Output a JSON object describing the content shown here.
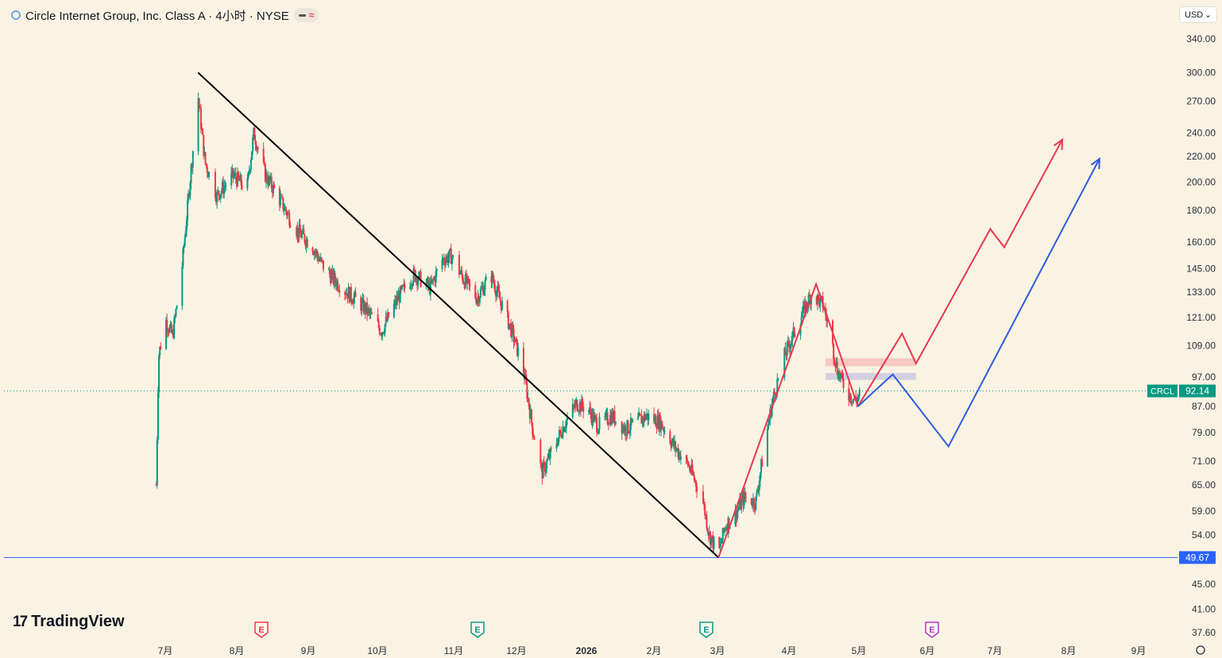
{
  "header": {
    "title": "Circle Internet Group, Inc. Class A · 4小时 · NYSE"
  },
  "currency": {
    "label": "USD"
  },
  "brand": {
    "name": "TradingView"
  },
  "chart_data": {
    "type": "candlestick",
    "symbol": "CRCL",
    "last_price": "92.14",
    "support_price": "49.67",
    "scale": "log",
    "y_ticks": [
      "340.00",
      "300.00",
      "270.00",
      "240.00",
      "220.00",
      "200.00",
      "180.00",
      "160.00",
      "145.00",
      "133.00",
      "121.00",
      "109.00",
      "97.00",
      "87.00",
      "79.00",
      "71.00",
      "65.00",
      "59.00",
      "54.00",
      "45.00",
      "41.00",
      "37.60"
    ],
    "x_ticks": [
      "7月",
      "8月",
      "9月",
      "10月",
      "11月",
      "12月",
      "2026",
      "2月",
      "3月",
      "4月",
      "5月",
      "6月",
      "7月",
      "8月",
      "9月"
    ],
    "price_path": [
      {
        "date": "2025-06-05",
        "price": 65
      },
      {
        "date": "2025-06-06",
        "price": 105
      },
      {
        "date": "2025-06-09",
        "price": 120
      },
      {
        "date": "2025-06-12",
        "price": 113
      },
      {
        "date": "2025-06-16",
        "price": 145
      },
      {
        "date": "2025-06-20",
        "price": 210
      },
      {
        "date": "2025-06-23",
        "price": 275
      },
      {
        "date": "2025-06-26",
        "price": 215
      },
      {
        "date": "2025-07-01",
        "price": 190
      },
      {
        "date": "2025-07-08",
        "price": 205
      },
      {
        "date": "2025-07-14",
        "price": 195
      },
      {
        "date": "2025-07-17",
        "price": 240
      },
      {
        "date": "2025-07-22",
        "price": 205
      },
      {
        "date": "2025-07-28",
        "price": 188
      },
      {
        "date": "2025-08-04",
        "price": 168
      },
      {
        "date": "2025-08-11",
        "price": 158
      },
      {
        "date": "2025-08-15",
        "price": 148
      },
      {
        "date": "2025-08-20",
        "price": 140
      },
      {
        "date": "2025-08-27",
        "price": 132
      },
      {
        "date": "2025-09-03",
        "price": 125
      },
      {
        "date": "2025-09-10",
        "price": 115
      },
      {
        "date": "2025-09-17",
        "price": 130
      },
      {
        "date": "2025-09-24",
        "price": 142
      },
      {
        "date": "2025-10-01",
        "price": 135
      },
      {
        "date": "2025-10-06",
        "price": 150
      },
      {
        "date": "2025-10-10",
        "price": 152
      },
      {
        "date": "2025-10-15",
        "price": 140
      },
      {
        "date": "2025-10-21",
        "price": 130
      },
      {
        "date": "2025-10-27",
        "price": 142
      },
      {
        "date": "2025-10-30",
        "price": 132
      },
      {
        "date": "2025-11-04",
        "price": 118
      },
      {
        "date": "2025-11-10",
        "price": 100
      },
      {
        "date": "2025-11-14",
        "price": 80
      },
      {
        "date": "2025-11-18",
        "price": 68
      },
      {
        "date": "2025-11-24",
        "price": 76
      },
      {
        "date": "2025-11-28",
        "price": 82
      },
      {
        "date": "2025-12-03",
        "price": 88
      },
      {
        "date": "2025-12-08",
        "price": 86
      },
      {
        "date": "2025-12-12",
        "price": 81
      },
      {
        "date": "2025-12-18",
        "price": 84
      },
      {
        "date": "2025-12-24",
        "price": 80
      },
      {
        "date": "2026-01-02",
        "price": 84
      },
      {
        "date": "2026-01-08",
        "price": 82
      },
      {
        "date": "2026-01-14",
        "price": 75
      },
      {
        "date": "2026-01-20",
        "price": 70
      },
      {
        "date": "2026-01-26",
        "price": 62
      },
      {
        "date": "2026-01-29",
        "price": 54
      },
      {
        "date": "2026-02-02",
        "price": 50.5
      },
      {
        "date": "2026-02-05",
        "price": 56
      },
      {
        "date": "2026-02-09",
        "price": 58
      },
      {
        "date": "2026-02-13",
        "price": 62
      },
      {
        "date": "2026-02-18",
        "price": 61
      },
      {
        "date": "2026-02-21",
        "price": 72
      },
      {
        "date": "2026-02-25",
        "price": 88
      },
      {
        "date": "2026-03-02",
        "price": 104
      },
      {
        "date": "2026-03-08",
        "price": 118
      },
      {
        "date": "2026-03-14",
        "price": 132
      },
      {
        "date": "2026-03-19",
        "price": 127
      },
      {
        "date": "2026-03-22",
        "price": 114
      },
      {
        "date": "2026-03-25",
        "price": 100
      },
      {
        "date": "2026-03-29",
        "price": 92
      },
      {
        "date": "2026-04-02",
        "price": 89
      },
      {
        "date": "2026-04-05",
        "price": 92.14
      }
    ],
    "drawings": {
      "downtrend_line": [
        {
          "date": "2025-06-23",
          "price": 300
        },
        {
          "date": "2026-02-02",
          "price": 49.67
        }
      ],
      "rally_arrow": [
        {
          "date": "2026-02-02",
          "price": 49.67
        },
        {
          "date": "2026-03-16",
          "price": 137
        },
        {
          "date": "2026-04-03",
          "price": 87
        }
      ],
      "red_projection": [
        {
          "date": "2026-04-03",
          "price": 87
        },
        {
          "date": "2026-04-22",
          "price": 114
        },
        {
          "date": "2026-04-28",
          "price": 102
        },
        {
          "date": "2026-05-30",
          "price": 168
        },
        {
          "date": "2026-06-05",
          "price": 157
        },
        {
          "date": "2026-06-30",
          "price": 234
        }
      ],
      "blue_projection": [
        {
          "date": "2026-04-03",
          "price": 87
        },
        {
          "date": "2026-04-18",
          "price": 98
        },
        {
          "date": "2026-05-12",
          "price": 75
        },
        {
          "date": "2026-07-16",
          "price": 218
        }
      ],
      "resistance_zone": {
        "from": "2026-03-20",
        "to": "2026-04-28",
        "low": 101,
        "high": 104
      },
      "support_zone": {
        "from": "2026-03-20",
        "to": "2026-04-28",
        "low": 96,
        "high": 98.5
      }
    },
    "earnings_markers": [
      "E",
      "E",
      "E",
      "E"
    ],
    "colors": {
      "up": "#089981",
      "down": "#f23645",
      "support_line": "#2962ff",
      "red_projection": "#e8374d",
      "blue_projection": "#2f5bdb"
    }
  }
}
